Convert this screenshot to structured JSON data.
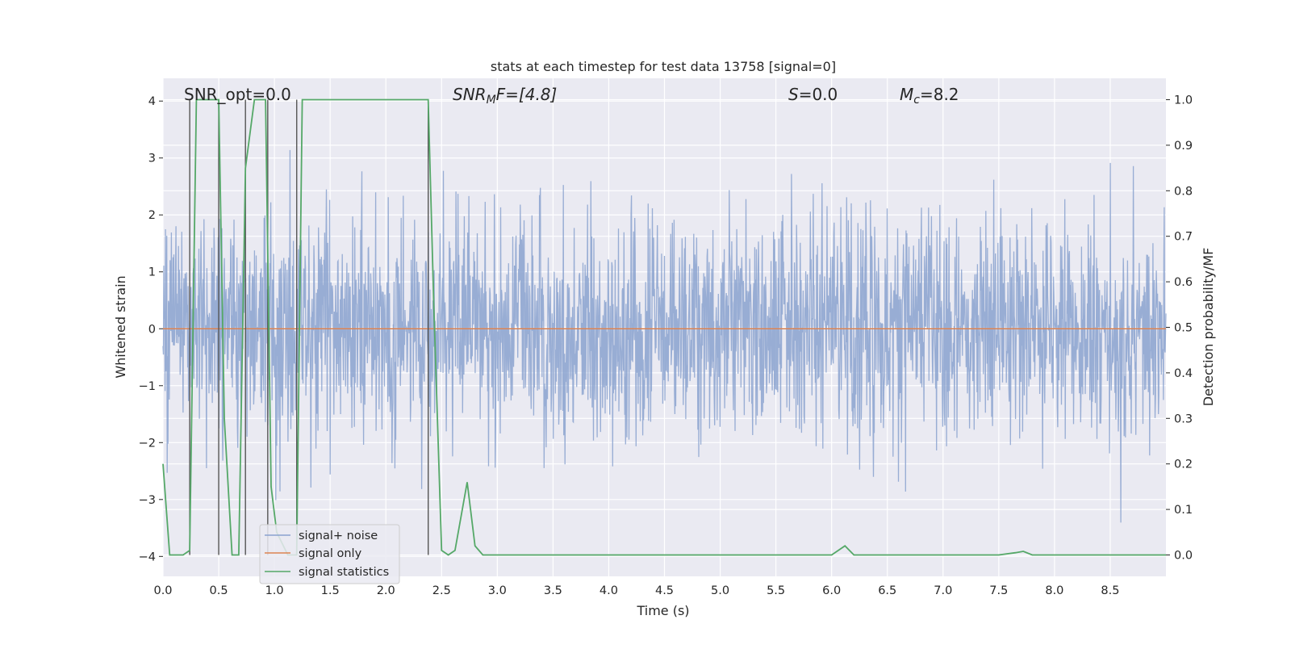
{
  "chart_data": {
    "type": "line",
    "title": "stats at each timestep for test data 13758 [signal=0]",
    "xlabel": "Time (s)",
    "ylabel_left": "Whitened strain",
    "ylabel_right": "Detection probability/MF",
    "xlim": [
      0.0,
      9.0
    ],
    "ylim_left": [
      -4.35,
      4.4
    ],
    "ylim_right": [
      -0.047,
      1.047
    ],
    "x_ticks": [
      "0.0",
      "0.5",
      "1.0",
      "1.5",
      "2.0",
      "2.5",
      "3.0",
      "3.5",
      "4.0",
      "4.5",
      "5.0",
      "5.5",
      "6.0",
      "6.5",
      "7.0",
      "7.5",
      "8.0",
      "8.5"
    ],
    "y_ticks_left": [
      "4",
      "3",
      "2",
      "1",
      "0",
      "−1",
      "−2",
      "−3",
      "−4"
    ],
    "y_ticks_right": [
      "1.0",
      "0.9",
      "0.8",
      "0.7",
      "0.6",
      "0.5",
      "0.4",
      "0.3",
      "0.2",
      "0.1",
      "0.0"
    ],
    "grid": true,
    "legend_position": "lower-left",
    "annotations": {
      "snr_opt": "SNR_opt=0.0",
      "snr_mf_prefix": "SNR",
      "snr_mf_sub": "M",
      "snr_mf_suffix": "F=[4.8]",
      "s_var": "S",
      "s_value": "=0.0",
      "mc_var": "M",
      "mc_sub": "c",
      "mc_value": "=8.2"
    },
    "series": [
      {
        "name": "signal+ noise",
        "color": "#8aa2cf",
        "noise_envelope": {
          "typical_abs": 1.6,
          "max": 4.0,
          "min": -3.95,
          "x_range": [
            0.0,
            9.0
          ]
        }
      },
      {
        "name": "signal only",
        "color": "#dd8452",
        "values_note": "flat at 0",
        "x": [
          0.0,
          9.0
        ],
        "y": [
          0.0,
          0.0
        ]
      },
      {
        "name": "signal statistics",
        "color": "#55a868",
        "x": [
          0.0,
          0.06,
          0.18,
          0.24,
          0.3,
          0.36,
          0.5,
          0.55,
          0.62,
          0.68,
          0.74,
          0.82,
          0.92,
          0.97,
          1.02,
          1.12,
          1.2,
          1.25,
          1.3,
          2.1,
          2.38,
          2.43,
          2.5,
          2.56,
          2.62,
          2.73,
          2.8,
          2.87,
          3.0,
          4.0,
          5.0,
          6.0,
          6.12,
          6.2,
          7.5,
          7.65,
          7.72,
          7.8,
          8.4,
          9.0
        ],
        "y": [
          0.2,
          0.0,
          0.0,
          0.01,
          1.0,
          1.0,
          1.0,
          0.3,
          0.0,
          0.0,
          0.85,
          1.0,
          1.0,
          0.15,
          0.05,
          0.0,
          0.0,
          1.0,
          1.0,
          1.0,
          1.0,
          0.55,
          0.01,
          0.0,
          0.01,
          0.16,
          0.02,
          0.0,
          0.0,
          0.0,
          0.0,
          0.0,
          0.02,
          0.0,
          0.0,
          0.005,
          0.008,
          0.0,
          0.0,
          0.0
        ]
      }
    ],
    "vlines": {
      "color": "#555555",
      "x": [
        0.24,
        0.5,
        0.74,
        0.94,
        1.2,
        2.38
      ]
    },
    "colors": {
      "plot_background": "#eaeaf2",
      "grid": "#ffffff",
      "text": "#262626"
    }
  }
}
